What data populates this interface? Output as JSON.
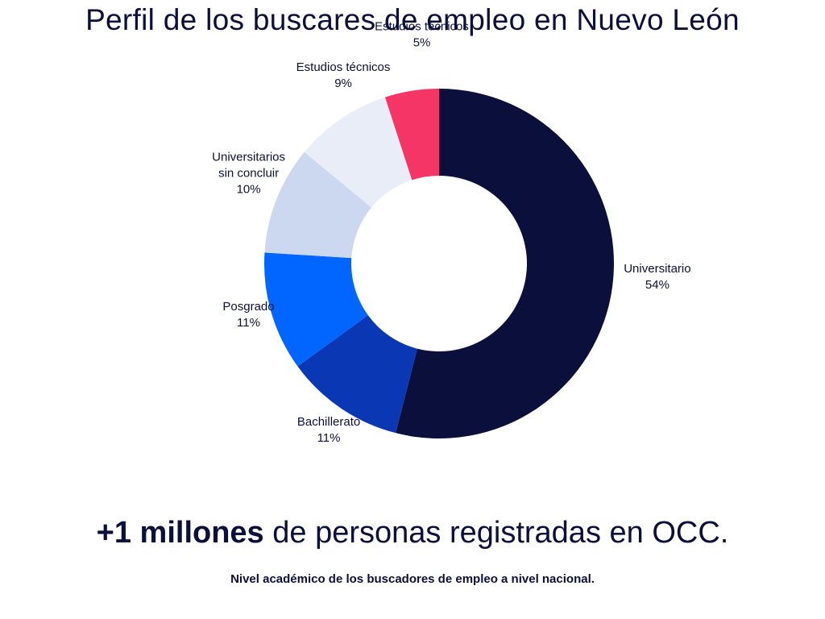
{
  "title": "Perfil de los buscares de empleo en Nuevo León",
  "headline": {
    "bold": "+1 millones",
    "rest": " de personas registradas en OCC."
  },
  "footnote": "Nivel académico de los buscadores de empleo a nivel nacional.",
  "chart_data": {
    "type": "pie",
    "donut": true,
    "title": "Perfil de los buscares de empleo en Nuevo León",
    "slices": [
      {
        "label": [
          "Universitario"
        ],
        "value": 54,
        "value_label": "54%",
        "color": "#0b0f3b"
      },
      {
        "label": [
          "Bachillerato"
        ],
        "value": 11,
        "value_label": "11%",
        "color": "#0a37b3"
      },
      {
        "label": [
          "Posgrado"
        ],
        "value": 11,
        "value_label": "11%",
        "color": "#0066ff"
      },
      {
        "label": [
          "Universitarios",
          "sin concluir"
        ],
        "value": 10,
        "value_label": "10%",
        "color": "#ccd8f0"
      },
      {
        "label": [
          "Estudios técnicos"
        ],
        "value": 9,
        "value_label": "9%",
        "color": "#e8edf8"
      },
      {
        "label": [
          "Estudios técnicos"
        ],
        "value": 5,
        "value_label": "5%",
        "color": "#f43566"
      }
    ]
  }
}
